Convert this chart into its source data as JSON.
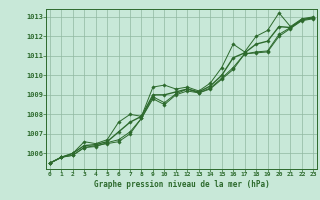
{
  "x": [
    0,
    1,
    2,
    3,
    4,
    5,
    6,
    7,
    8,
    9,
    10,
    11,
    12,
    13,
    14,
    15,
    16,
    17,
    18,
    19,
    20,
    21,
    22,
    23
  ],
  "line_min": [
    1005.5,
    1005.8,
    1005.9,
    1006.3,
    1006.4,
    1006.5,
    1006.6,
    1007.0,
    1007.8,
    1008.8,
    1008.5,
    1009.0,
    1009.2,
    1009.1,
    1009.3,
    1009.8,
    1010.3,
    1011.1,
    1011.15,
    1011.2,
    1012.0,
    1012.4,
    1012.8,
    1012.9
  ],
  "line_max": [
    1005.5,
    1005.8,
    1006.0,
    1006.6,
    1006.5,
    1006.7,
    1007.6,
    1008.0,
    1007.9,
    1009.4,
    1009.5,
    1009.3,
    1009.4,
    1009.2,
    1009.6,
    1010.4,
    1011.6,
    1011.2,
    1012.0,
    1012.3,
    1013.2,
    1012.5,
    1012.9,
    1013.0
  ],
  "line_avg": [
    1005.5,
    1005.8,
    1006.0,
    1006.4,
    1006.45,
    1006.6,
    1007.1,
    1007.6,
    1007.9,
    1009.0,
    1009.0,
    1009.15,
    1009.3,
    1009.15,
    1009.45,
    1010.0,
    1010.9,
    1011.15,
    1011.6,
    1011.75,
    1012.5,
    1012.45,
    1012.85,
    1012.95
  ],
  "line_instant": [
    1005.5,
    1005.8,
    1005.9,
    1006.3,
    1006.35,
    1006.55,
    1006.7,
    1007.1,
    1007.8,
    1008.9,
    1008.6,
    1009.05,
    1009.3,
    1009.1,
    1009.35,
    1009.85,
    1010.4,
    1011.1,
    1011.2,
    1011.25,
    1012.1,
    1012.45,
    1012.85,
    1012.95
  ],
  "line_color": "#2d6a2d",
  "bg_color": "#c8e8d8",
  "grid_color": "#90b8a0",
  "xlabel": "Graphe pression niveau de la mer (hPa)",
  "ylim": [
    1005.2,
    1013.4
  ],
  "yticks": [
    1006,
    1007,
    1008,
    1009,
    1010,
    1011,
    1012,
    1013
  ],
  "xticks": [
    0,
    1,
    2,
    3,
    4,
    5,
    6,
    7,
    8,
    9,
    10,
    11,
    12,
    13,
    14,
    15,
    16,
    17,
    18,
    19,
    20,
    21,
    22,
    23
  ],
  "marker": "D",
  "marker_size": 1.8,
  "linewidth": 0.7
}
